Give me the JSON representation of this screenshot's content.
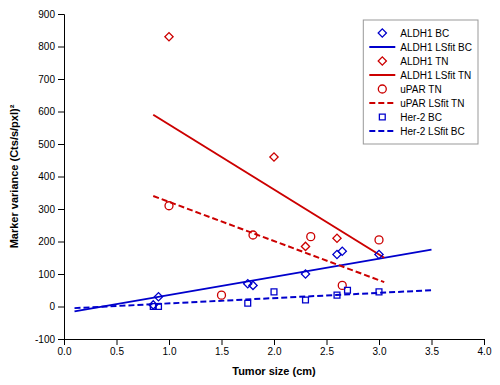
{
  "chart_data": {
    "type": "scatter",
    "xlabel": "Tumor size (cm)",
    "ylabel": "Marker variance (Cts/s/pxl)²",
    "xlim": [
      0,
      4
    ],
    "ylim": [
      -100,
      900
    ],
    "xticks": [
      {
        "value": 0,
        "label": "0.0"
      },
      0.5,
      {
        "value": 1.0,
        "label": "1.0"
      },
      1.5,
      {
        "value": 2.0,
        "label": "2.0"
      },
      2.5,
      {
        "value": 3.0,
        "label": "3.0"
      },
      3.5,
      {
        "value": 4.0,
        "label": "4.0"
      }
    ],
    "yticks": [
      -100,
      0,
      100,
      200,
      300,
      400,
      500,
      600,
      700,
      800,
      900
    ],
    "grid": false,
    "legend": "upper right",
    "series": [
      {
        "name": "ALDH1 BC",
        "type": "scatter",
        "color": "#0000CC",
        "marker": "diamond",
        "x": [
          0.85,
          0.9,
          1.75,
          1.8,
          2.3,
          2.6,
          2.65,
          3.0
        ],
        "values": [
          5,
          30,
          70,
          65,
          100,
          160,
          170,
          160
        ]
      },
      {
        "name": "ALDH1 LSfit BC",
        "type": "line",
        "color": "#0000CC",
        "line_style": "solid",
        "x": [
          0.1,
          3.5
        ],
        "values": [
          -15,
          175
        ]
      },
      {
        "name": "ALDH1 TN",
        "type": "scatter",
        "color": "#CC0000",
        "marker": "diamond",
        "x": [
          1.0,
          2.0,
          2.3,
          2.6
        ],
        "values": [
          830,
          460,
          185,
          210
        ]
      },
      {
        "name": "ALDH1 LSfit TN",
        "type": "line",
        "color": "#CC0000",
        "line_style": "solid",
        "x": [
          0.85,
          3.05
        ],
        "values": [
          590,
          150
        ]
      },
      {
        "name": "uPAR TN",
        "type": "scatter",
        "color": "#CC0000",
        "marker": "circle",
        "x": [
          1.0,
          1.5,
          1.8,
          2.35,
          2.65,
          3.0
        ],
        "values": [
          310,
          35,
          220,
          215,
          65,
          205
        ]
      },
      {
        "name": "uPAR LSfit TN",
        "type": "line",
        "color": "#CC0000",
        "line_style": "dashed",
        "x": [
          0.85,
          3.05
        ],
        "values": [
          340,
          75
        ]
      },
      {
        "name": "Her-2 BC",
        "type": "scatter",
        "color": "#0000CC",
        "marker": "square",
        "x": [
          0.85,
          0.9,
          1.75,
          2.0,
          2.3,
          2.6,
          2.7,
          3.0
        ],
        "values": [
          0,
          0,
          10,
          45,
          20,
          35,
          50,
          45
        ]
      },
      {
        "name": "Her-2 LSfit BC",
        "type": "line",
        "color": "#0000CC",
        "line_style": "dashed",
        "x": [
          0.1,
          3.5
        ],
        "values": [
          -5,
          50
        ]
      }
    ]
  }
}
